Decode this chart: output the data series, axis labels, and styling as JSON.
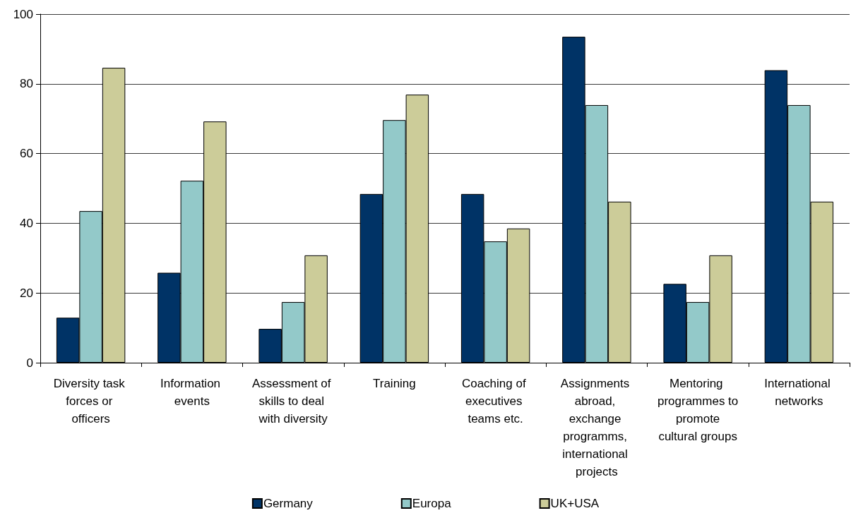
{
  "chart_data": {
    "type": "bar",
    "categories": [
      "Diversity task forces or officers",
      "Information events",
      "Assessment of skills to deal with diversity",
      "Training",
      "Coaching of executives teams etc.",
      "Assignments abroad, exchange programms, international projects",
      "Mentoring programmes to promote cultural groups",
      "International networks"
    ],
    "series": [
      {
        "name": "Germany",
        "color": "#003366",
        "values": [
          12.9,
          25.8,
          9.7,
          48.4,
          48.4,
          93.5,
          22.6,
          83.9
        ]
      },
      {
        "name": "Europa",
        "color": "#93c9c9",
        "values": [
          43.5,
          52.2,
          17.4,
          69.6,
          34.8,
          73.9,
          17.4,
          73.9
        ]
      },
      {
        "name": "UK+USA",
        "color": "#cccc99",
        "values": [
          84.6,
          69.2,
          30.8,
          76.9,
          38.5,
          46.2,
          30.8,
          46.2
        ]
      }
    ],
    "ylim": [
      0,
      100
    ],
    "yticks": [
      0,
      20,
      40,
      60,
      80,
      100
    ],
    "grid": "y",
    "legend": "bottom"
  }
}
